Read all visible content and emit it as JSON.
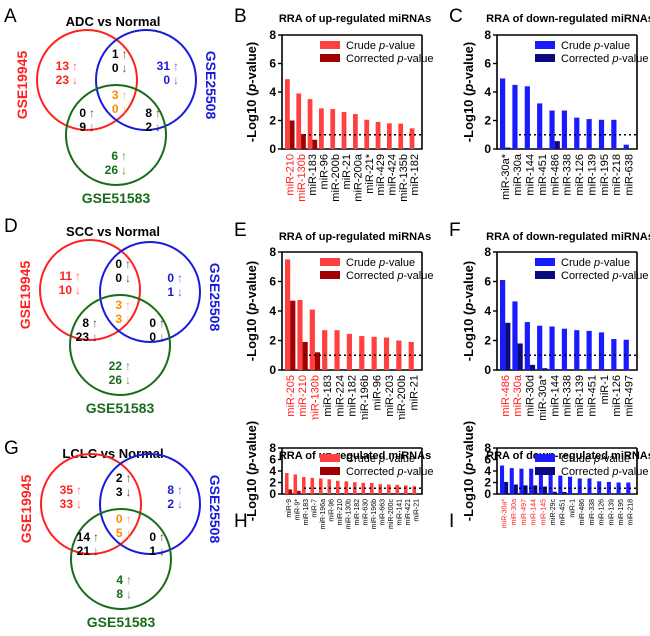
{
  "colors": {
    "set1": "#ff2020",
    "set2": "#1a1adb",
    "set3": "#1a6b1a",
    "center": "#ff8c00",
    "overlap": "#000000",
    "crude_up": "#ff4040",
    "corrected_up": "#a00000",
    "crude_down": "#1a1aff",
    "corrected_down": "#0a0a80",
    "highlight_label": "#ff2020",
    "normal_label": "#000000"
  },
  "venn_sets": [
    "GSE19945",
    "GSE25508",
    "GSE51583"
  ],
  "chart_data": [
    {
      "panel": "A",
      "type": "venn",
      "title": "ADC vs Normal",
      "sets": [
        "GSE19945",
        "GSE25508",
        "GSE51583"
      ],
      "regions": {
        "only_1": {
          "up": "13",
          "down": "23"
        },
        "only_2": {
          "up": "31",
          "down": "0"
        },
        "only_3": {
          "up": "6",
          "down": "26"
        },
        "1_2": {
          "up": "1",
          "down": "0"
        },
        "1_3": {
          "up": "0",
          "down": "9"
        },
        "2_3": {
          "up": "8",
          "down": "2"
        },
        "all": {
          "up": "3",
          "down": "0"
        }
      }
    },
    {
      "panel": "B",
      "type": "bar",
      "direction": "up",
      "title": "RRA of up-regulated miRNAs",
      "ylabel": "-Log10 (p-value)",
      "ylim": [
        0,
        8
      ],
      "yticks": [
        "0",
        "2",
        "4",
        "6",
        "8"
      ],
      "threshold": 1,
      "legend": [
        "Crude p-value",
        "Corrected p-value"
      ],
      "legend_position": "top-right",
      "categories": [
        "miR-210",
        "miR-130b",
        "miR-183",
        "miR-96",
        "miR-200b",
        "miR-21",
        "miR-200a",
        "miR-21*",
        "miR-429",
        "miR-424",
        "miR-135b",
        "miR-182"
      ],
      "highlight": [
        true,
        true,
        false,
        false,
        false,
        false,
        false,
        false,
        false,
        false,
        false,
        false
      ],
      "series": [
        {
          "name": "Crude p-value",
          "values": [
            4.9,
            3.9,
            3.5,
            2.85,
            2.8,
            2.6,
            2.45,
            2.05,
            1.9,
            1.8,
            1.78,
            1.45
          ]
        },
        {
          "name": "Corrected p-value",
          "values": [
            2.0,
            1.05,
            0.65,
            0,
            0,
            0,
            0,
            0,
            0,
            0,
            0,
            0
          ]
        }
      ]
    },
    {
      "panel": "C",
      "type": "bar",
      "direction": "down",
      "title": "RRA of down-regulated miRNAs",
      "ylabel": "-Log10 (p-value)",
      "ylim": [
        0,
        8
      ],
      "yticks": [
        "0",
        "2",
        "4",
        "6",
        "8"
      ],
      "threshold": 1,
      "legend": [
        "Crude p-value",
        "Corrected p-value"
      ],
      "legend_position": "top-right",
      "categories": [
        "miR-30a*",
        "miR-30a",
        "miR-144",
        "miR-451",
        "miR-486",
        "miR-338",
        "miR-126",
        "miR-139",
        "miR-195",
        "miR-218",
        "miR-638"
      ],
      "highlight": [
        false,
        false,
        false,
        false,
        false,
        false,
        false,
        false,
        false,
        false,
        false
      ],
      "series": [
        {
          "name": "Crude p-value",
          "values": [
            4.95,
            4.5,
            4.4,
            3.2,
            2.7,
            2.7,
            2.2,
            2.1,
            2.05,
            2.05,
            0.3
          ]
        },
        {
          "name": "Corrected p-value",
          "values": [
            0.1,
            0,
            0,
            0,
            0.55,
            0,
            0,
            0,
            0,
            0,
            0
          ]
        }
      ]
    },
    {
      "panel": "D",
      "type": "venn",
      "title": "SCC vs Normal",
      "sets": [
        "GSE19945",
        "GSE25508",
        "GSE51583"
      ],
      "regions": {
        "only_1": {
          "up": "11",
          "down": "10"
        },
        "only_2": {
          "up": "0",
          "down": "1"
        },
        "only_3": {
          "up": "22",
          "down": "26"
        },
        "1_2": {
          "up": "0",
          "down": "0"
        },
        "1_3": {
          "up": "8",
          "down": "23"
        },
        "2_3": {
          "up": "0",
          "down": "0"
        },
        "all": {
          "up": "3",
          "down": "3"
        }
      }
    },
    {
      "panel": "E",
      "type": "bar",
      "direction": "up",
      "title": "RRA of up-regulated miRNAs",
      "ylabel": "-Log10 (p-value)",
      "ylim": [
        0,
        8
      ],
      "yticks": [
        "0",
        "2",
        "4",
        "6",
        "8"
      ],
      "threshold": 1,
      "legend": [
        "Crude p-value",
        "Corrected p-value"
      ],
      "legend_position": "top-right",
      "categories": [
        "miR-205",
        "miR-210",
        "miR-130b",
        "miR-183",
        "miR-224",
        "miR-182",
        "miR-196b",
        "miR-96",
        "miR-203",
        "miR-200b",
        "miR-21"
      ],
      "highlight": [
        true,
        true,
        true,
        false,
        false,
        false,
        false,
        false,
        false,
        false,
        false
      ],
      "series": [
        {
          "name": "Crude p-value",
          "values": [
            7.5,
            4.75,
            4.1,
            2.7,
            2.7,
            2.45,
            2.3,
            2.25,
            2.2,
            2.0,
            1.9
          ]
        },
        {
          "name": "Corrected p-value",
          "values": [
            4.7,
            1.9,
            1.2,
            0,
            0,
            0,
            0,
            0,
            0,
            0,
            0
          ]
        }
      ]
    },
    {
      "panel": "F",
      "type": "bar",
      "direction": "down",
      "title": "RRA of down-regulated miRNAs",
      "ylabel": "-Log10 (p-value)",
      "ylim": [
        0,
        8
      ],
      "yticks": [
        "0",
        "2",
        "4",
        "6",
        "8"
      ],
      "threshold": 1,
      "legend": [
        "Crude p-value",
        "Corrected p-value"
      ],
      "legend_position": "top-right",
      "categories": [
        "miR-486",
        "miR-30a",
        "miR-30d",
        "miR-30a*",
        "miR-144",
        "miR-338",
        "miR-139",
        "miR-451",
        "miR-1",
        "miR-126",
        "miR-497"
      ],
      "highlight": [
        true,
        true,
        false,
        false,
        false,
        false,
        false,
        false,
        false,
        false,
        false
      ],
      "series": [
        {
          "name": "Crude p-value",
          "values": [
            6.1,
            4.65,
            3.25,
            3.0,
            2.95,
            2.8,
            2.7,
            2.65,
            2.55,
            2.1,
            2.05
          ]
        },
        {
          "name": "Corrected p-value",
          "values": [
            3.2,
            1.8,
            0.35,
            0.12,
            0.05,
            0,
            0,
            0,
            0,
            0,
            0
          ]
        }
      ]
    },
    {
      "panel": "G",
      "type": "venn",
      "title": "LCLC vs Normal",
      "sets": [
        "GSE19945",
        "GSE25508",
        "GSE51583"
      ],
      "regions": {
        "only_1": {
          "up": "35",
          "down": "33"
        },
        "only_2": {
          "up": "8",
          "down": "2"
        },
        "only_3": {
          "up": "4",
          "down": "8"
        },
        "1_2": {
          "up": "2",
          "down": "3"
        },
        "1_3": {
          "up": "14",
          "down": "21"
        },
        "2_3": {
          "up": "0",
          "down": "1"
        },
        "all": {
          "up": "0",
          "down": "5"
        }
      }
    },
    {
      "panel": "H",
      "type": "bar",
      "direction": "up",
      "title": "RRA of up-regulated miRNAs",
      "ylabel": "-Log10 (p-value)",
      "ylim": [
        0,
        8
      ],
      "yticks": [
        "0",
        "2",
        "4",
        "6",
        "8"
      ],
      "threshold": 1,
      "legend": [
        "Crude p-value",
        "Corrected p-value"
      ],
      "legend_position": "top-right",
      "categories": [
        "miR-9",
        "miR-9*",
        "miR-183",
        "miR-7",
        "miR-196a",
        "miR-96",
        "miR-210",
        "miR-130b",
        "miR-182",
        "miR-630",
        "miR-196b",
        "miR-663",
        "miR-200c",
        "miR-141",
        "miR-421",
        "miR-21"
      ],
      "highlight": [
        false,
        false,
        false,
        false,
        false,
        false,
        false,
        false,
        false,
        false,
        false,
        false,
        false,
        false,
        false,
        false
      ],
      "series": [
        {
          "name": "Crude p-value",
          "values": [
            3.65,
            3.4,
            2.95,
            2.8,
            2.7,
            2.55,
            2.3,
            2.2,
            2.05,
            1.95,
            1.9,
            1.7,
            1.65,
            1.6,
            1.5,
            1.35
          ]
        },
        {
          "name": "Corrected p-value",
          "values": [
            0.8,
            0.55,
            0.05,
            0,
            0,
            0,
            0,
            0,
            0,
            0,
            0,
            0,
            0,
            0,
            0,
            0
          ]
        }
      ]
    },
    {
      "panel": "I",
      "type": "bar",
      "direction": "down",
      "title": "RRA of down-regulated miRNAs",
      "ylabel": "-Log10 (p-value)",
      "ylim": [
        0,
        8
      ],
      "yticks": [
        "0",
        "2",
        "4",
        "6",
        "8"
      ],
      "threshold": 1,
      "legend": [
        "Crude p-value",
        "Corrected p-value"
      ],
      "legend_position": "top-right",
      "categories": [
        "miR-30a*",
        "miR-30a",
        "miR-497",
        "miR-144",
        "miR-145",
        "miR-29c",
        "miR-451",
        "miR-1",
        "miR-486",
        "miR-338",
        "miR-126",
        "miR-139",
        "miR-195",
        "miR-218"
      ],
      "highlight": [
        true,
        true,
        true,
        true,
        true,
        false,
        false,
        false,
        false,
        false,
        false,
        false,
        false,
        false
      ],
      "series": [
        {
          "name": "Crude p-value",
          "values": [
            4.95,
            4.5,
            4.4,
            4.4,
            4.15,
            3.3,
            3.2,
            3.0,
            2.7,
            2.7,
            2.2,
            2.1,
            2.0,
            2.0
          ]
        },
        {
          "name": "Corrected p-value",
          "values": [
            2.1,
            1.65,
            1.5,
            1.5,
            1.3,
            0.4,
            0.35,
            0.1,
            0,
            0,
            0,
            0,
            0,
            0
          ]
        }
      ]
    }
  ]
}
